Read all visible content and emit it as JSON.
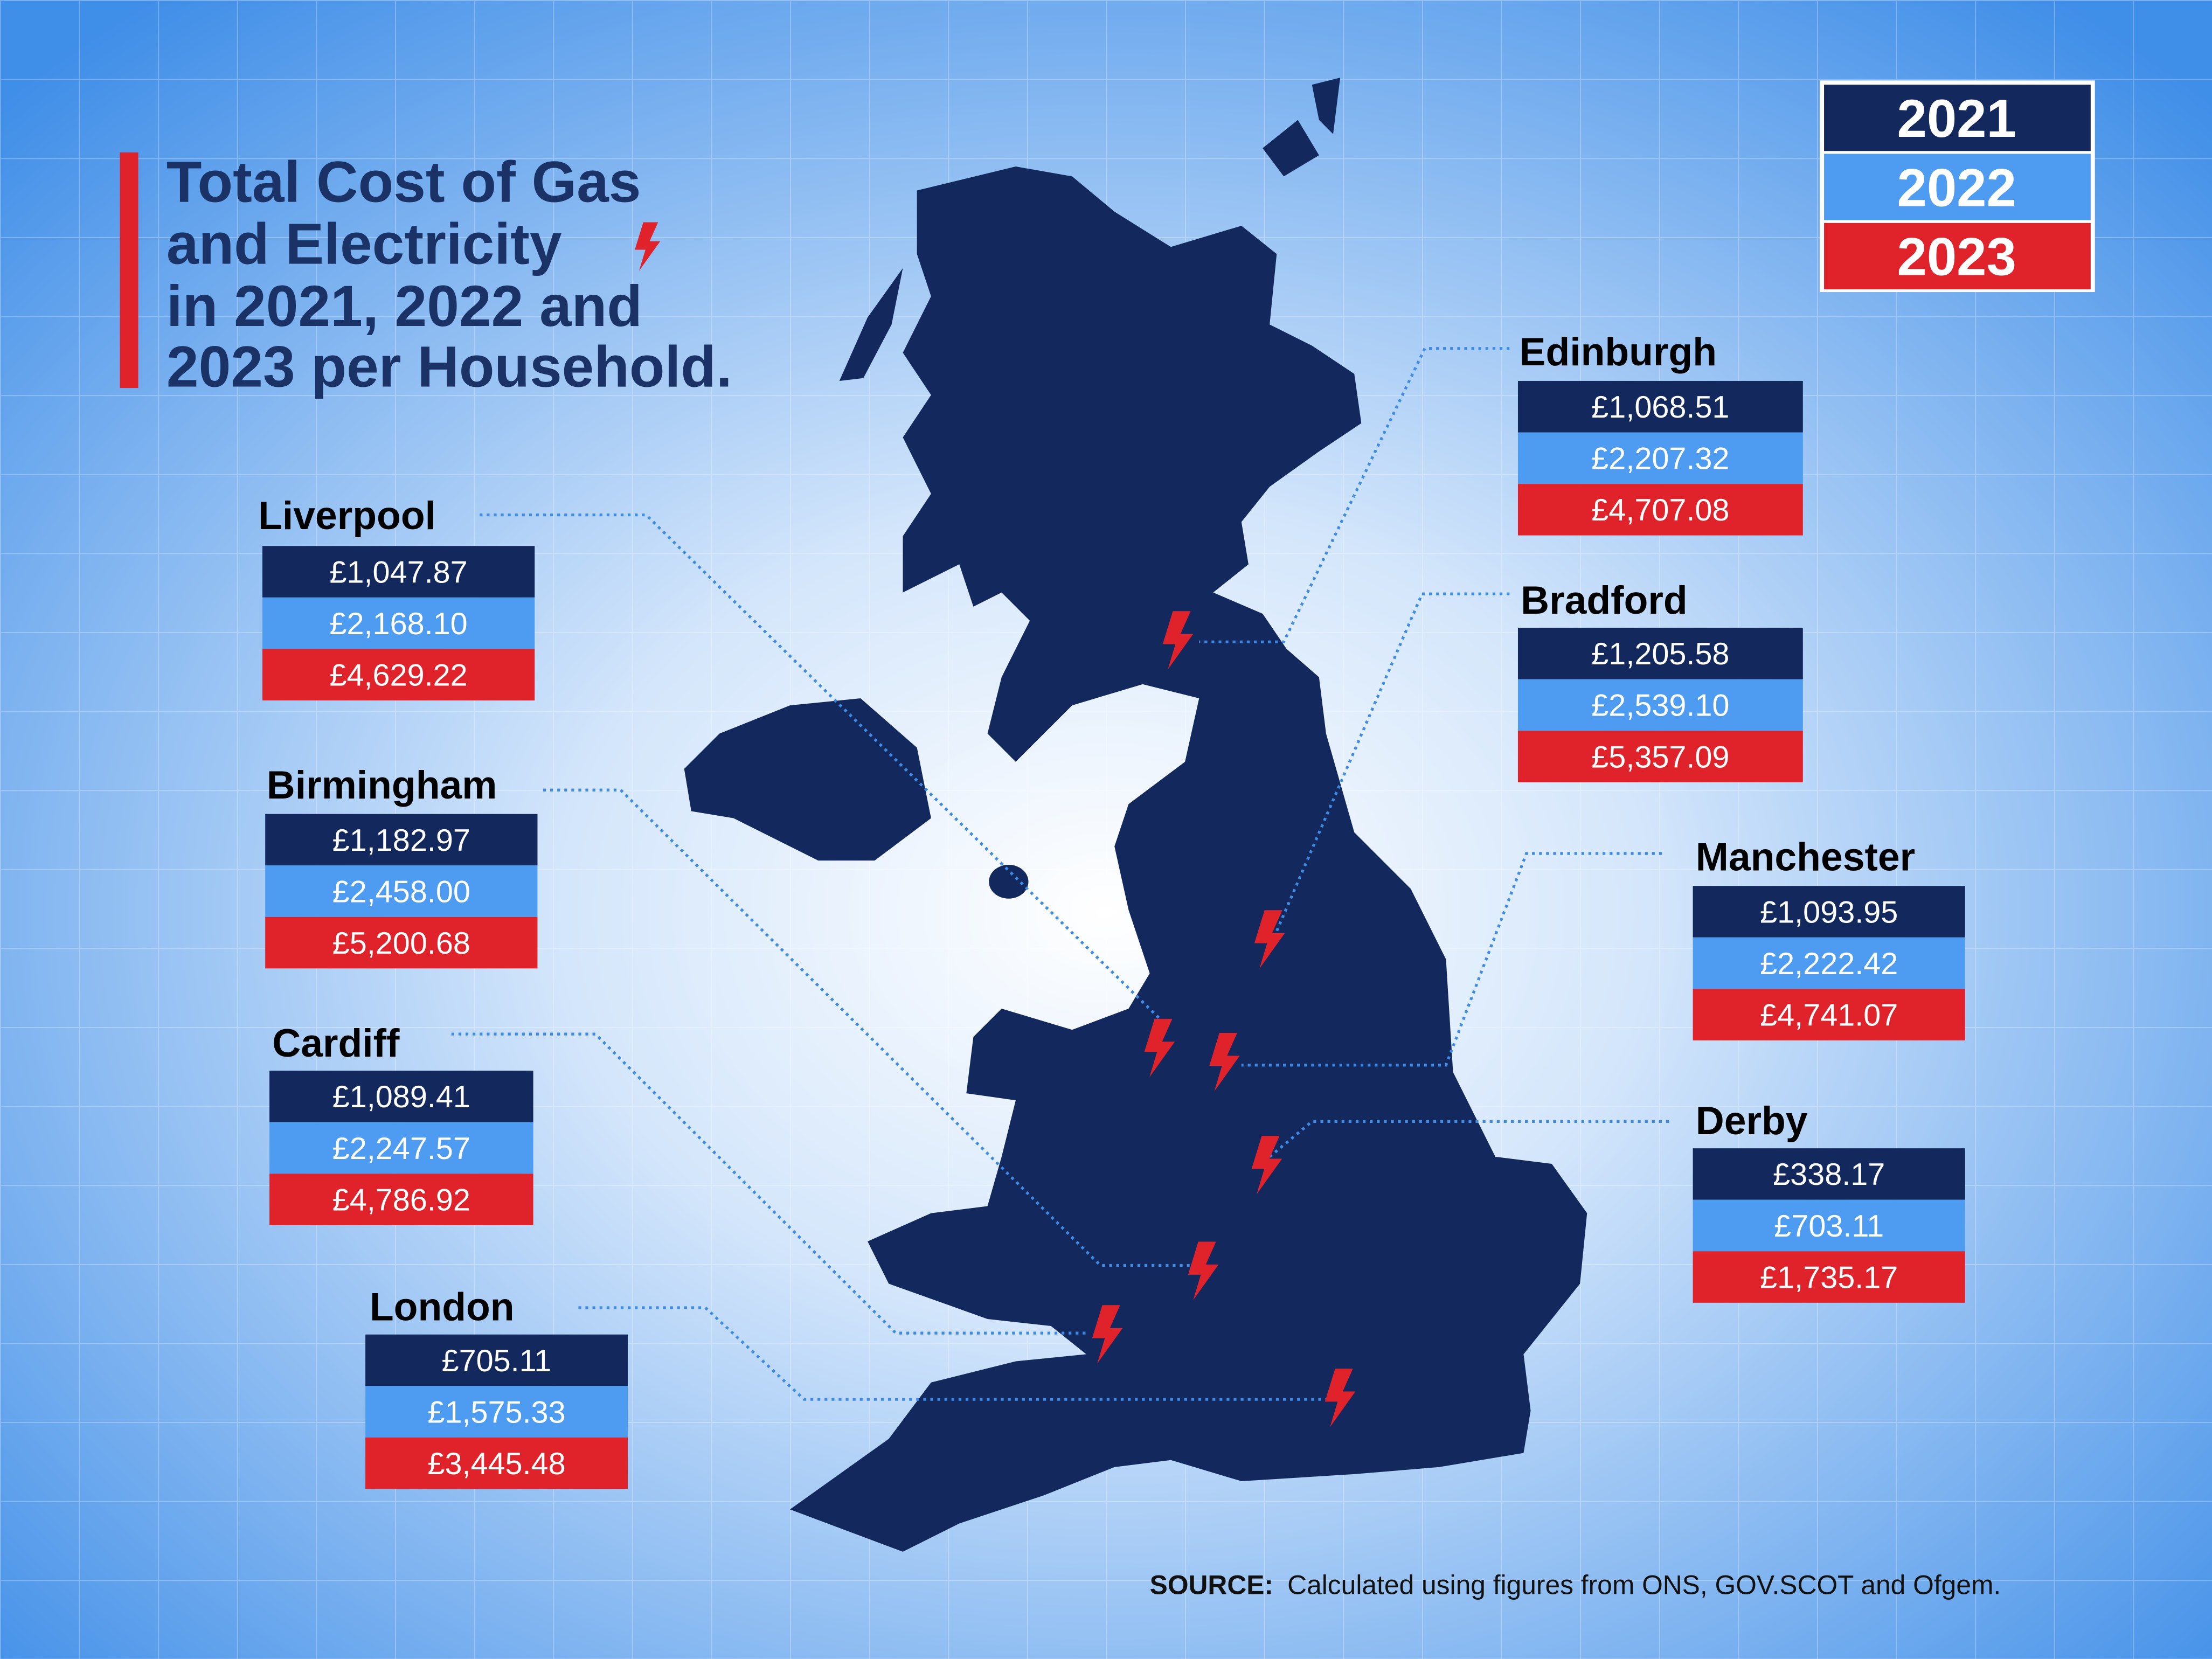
{
  "title_lines": [
    "Total Cost of Gas",
    "and Electricity",
    "in 2021, 2022 and",
    "2023 per Household."
  ],
  "legend": [
    "2021",
    "2022",
    "2023"
  ],
  "cities": [
    {
      "name": "Edinburgh",
      "values": [
        "£1,068.51",
        "£2,207.32",
        "£4,707.08"
      ]
    },
    {
      "name": "Bradford",
      "values": [
        "£1,205.58",
        "£2,539.10",
        "£5,357.09"
      ]
    },
    {
      "name": "Manchester",
      "values": [
        "£1,093.95",
        "£2,222.42",
        "£4,741.07"
      ]
    },
    {
      "name": "Derby",
      "values": [
        "£338.17",
        "£703.11",
        "£1,735.17"
      ]
    },
    {
      "name": "Liverpool",
      "values": [
        "£1,047.87",
        "£2,168.10",
        "£4,629.22"
      ]
    },
    {
      "name": "Birmingham",
      "values": [
        "£1,182.97",
        "£2,458.00",
        "£5,200.68"
      ]
    },
    {
      "name": "Cardiff",
      "values": [
        "£1,089.41",
        "£2,247.57",
        "£4,786.92"
      ]
    },
    {
      "name": "London",
      "values": [
        "£705.11",
        "£1,575.33",
        "£3,445.48"
      ]
    }
  ],
  "source": {
    "label": "SOURCE:",
    "text": "Calculated using figures from ONS, GOV.SCOT and Ofgem."
  }
}
